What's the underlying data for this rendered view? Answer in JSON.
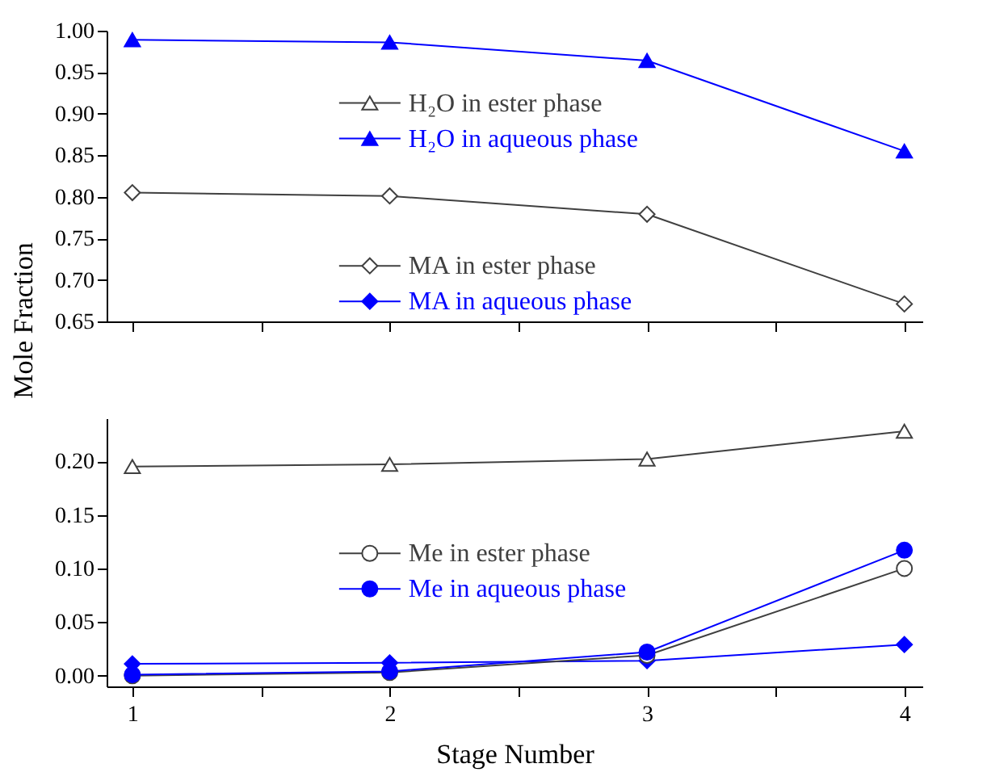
{
  "chart_data": [
    {
      "type": "line",
      "ylabel": "Mole Fraction",
      "x": [
        1,
        2,
        3,
        4
      ],
      "xlim": [
        0.9,
        4.07
      ],
      "xticks": [
        1,
        {
          "value": 1.5,
          "label": null
        },
        2,
        {
          "value": 2.5,
          "label": null
        },
        3,
        {
          "value": 3.5,
          "label": null
        },
        4
      ],
      "ylim": [
        0.65,
        1.0
      ],
      "yticks": [
        {
          "value": 0.65,
          "label": "0.65"
        },
        {
          "value": 0.7,
          "label": "0.70"
        },
        {
          "value": 0.75,
          "label": "0.75"
        },
        {
          "value": 0.8,
          "label": "0.80"
        },
        {
          "value": 0.85,
          "label": "0.85"
        },
        {
          "value": 0.9,
          "label": "0.90"
        },
        {
          "value": 0.95,
          "label": "0.95"
        },
        {
          "value": 1.0,
          "label": "1.00"
        }
      ],
      "tick_labels": "y",
      "grid": false,
      "legend": "center",
      "line_style": "solid",
      "series": [
        {
          "name": "H₂O in ester phase",
          "color": "#404040",
          "marker": "triangle",
          "values": [
            null,
            null,
            null,
            null
          ]
        },
        {
          "name": "H₂O in aqueous phase",
          "color": "#0000ff",
          "marker": "triangle",
          "values": [
            0.989,
            0.986,
            0.964,
            0.855
          ]
        },
        {
          "name": "MA in ester phase",
          "color": "#404040",
          "marker": "diamond",
          "values": [
            0.805,
            0.801,
            0.779,
            0.671
          ]
        },
        {
          "name": "MA in aqueous phase",
          "color": "#0000ff",
          "marker": "diamond",
          "values": [
            null,
            null,
            null,
            null
          ]
        }
      ]
    },
    {
      "type": "line",
      "xlabel": "Stage Number",
      "x": [
        1,
        2,
        3,
        4
      ],
      "xlim": [
        0.9,
        4.07
      ],
      "xticks": [
        1,
        {
          "value": 1.5,
          "label": null
        },
        2,
        {
          "value": 2.5,
          "label": null
        },
        3,
        {
          "value": 3.5,
          "label": null
        },
        4
      ],
      "ylim": [
        -0.01,
        0.24
      ],
      "yticks": [
        {
          "value": 0,
          "label": "0.00"
        },
        {
          "value": 0.05,
          "label": "0.05"
        },
        {
          "value": 0.1,
          "label": "0.10"
        },
        {
          "value": 0.15,
          "label": "0.15"
        },
        {
          "value": 0.2,
          "label": "0.20"
        }
      ],
      "grid": false,
      "legend": "center",
      "line_style": "solid",
      "series": [
        {
          "color": "#404040",
          "marker": "triangle",
          "values": [
            0.195,
            0.197,
            0.202,
            0.228
          ]
        },
        {
          "color": "#0000ff",
          "marker": "diamond",
          "values": [
            0.011,
            0.012,
            0.014,
            0.029
          ]
        },
        {
          "name": "Me in ester phase",
          "color": "#404040",
          "marker": "circle",
          "values": [
            0.0,
            0.003,
            0.019,
            0.1
          ]
        },
        {
          "name": "Me in aqueous phase",
          "color": "#0000ff",
          "marker": "circle",
          "values": [
            0.001,
            0.004,
            0.022,
            0.117
          ]
        }
      ]
    }
  ]
}
